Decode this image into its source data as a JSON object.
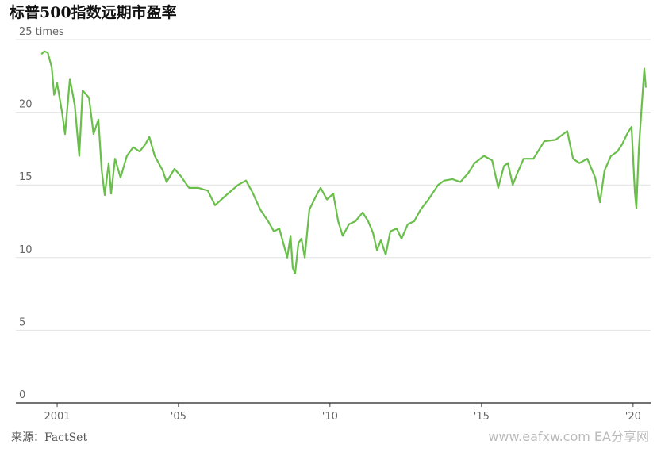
{
  "chart_data": {
    "type": "line",
    "title": "标普500指数远期市盈率",
    "source": "来源：FactSet",
    "watermark": "www.eafxw.com EA分享网",
    "x": [
      2000.48,
      2000.58,
      2000.69,
      2000.82,
      2000.9,
      2001.0,
      2001.16,
      2001.26,
      2001.42,
      2001.58,
      2001.73,
      2001.84,
      2002.05,
      2002.2,
      2002.36,
      2002.47,
      2002.57,
      2002.7,
      2002.78,
      2002.91,
      2003.09,
      2003.3,
      2003.51,
      2003.72,
      2003.91,
      2004.04,
      2004.22,
      2004.48,
      2004.61,
      2004.87,
      2005.08,
      2005.35,
      2005.66,
      2005.97,
      2006.21,
      2006.58,
      2006.97,
      2007.23,
      2007.44,
      2007.7,
      2007.96,
      2008.15,
      2008.33,
      2008.46,
      2008.59,
      2008.7,
      2008.77,
      2008.85,
      2008.96,
      2009.06,
      2009.17,
      2009.32,
      2009.53,
      2009.69,
      2009.9,
      2010.11,
      2010.27,
      2010.42,
      2010.63,
      2010.84,
      2011.08,
      2011.26,
      2011.42,
      2011.55,
      2011.68,
      2011.84,
      2011.99,
      2012.2,
      2012.36,
      2012.57,
      2012.78,
      2012.99,
      2013.25,
      2013.57,
      2013.77,
      2014.04,
      2014.3,
      2014.56,
      2014.77,
      2015.08,
      2015.35,
      2015.55,
      2015.74,
      2015.87,
      2016.03,
      2016.18,
      2016.39,
      2016.71,
      2016.92,
      2017.07,
      2017.44,
      2017.83,
      2018.02,
      2018.23,
      2018.49,
      2018.75,
      2018.91,
      2019.06,
      2019.27,
      2019.48,
      2019.64,
      2019.8,
      2019.95,
      2020.06,
      2020.11,
      2020.19,
      2020.27,
      2020.32,
      2020.37,
      2020.42
    ],
    "series": [
      {
        "name": "标普500指数远期市盈率",
        "color": "#6abf4b",
        "values": [
          24.0,
          24.2,
          24.1,
          23.1,
          21.2,
          22.0,
          20.0,
          18.5,
          22.3,
          20.5,
          17.0,
          21.5,
          21.0,
          18.5,
          19.5,
          16.0,
          14.3,
          16.5,
          14.4,
          16.8,
          15.5,
          17.0,
          17.6,
          17.3,
          17.8,
          18.3,
          17.0,
          16.0,
          15.2,
          16.1,
          15.6,
          14.8,
          14.8,
          14.6,
          13.6,
          14.3,
          15.0,
          15.3,
          14.5,
          13.3,
          12.5,
          11.8,
          12.0,
          11.0,
          10.0,
          11.5,
          9.3,
          8.9,
          11.0,
          11.3,
          10.0,
          13.3,
          14.2,
          14.8,
          14.0,
          14.4,
          12.5,
          11.5,
          12.3,
          12.5,
          13.1,
          12.5,
          11.7,
          10.5,
          11.2,
          10.2,
          11.8,
          12.0,
          11.3,
          12.3,
          12.5,
          13.3,
          14.0,
          15.0,
          15.3,
          15.4,
          15.2,
          15.8,
          16.5,
          17.0,
          16.7,
          14.8,
          16.3,
          16.5,
          15.0,
          15.8,
          16.8,
          16.8,
          17.5,
          18.0,
          18.1,
          18.7,
          16.8,
          16.5,
          16.8,
          15.5,
          13.8,
          16.0,
          17.0,
          17.3,
          17.8,
          18.5,
          19.0,
          14.5,
          13.4,
          17.5,
          20.0,
          21.5,
          23.0,
          21.7
        ]
      }
    ],
    "xlim": [
      1999.69,
      2020.58
    ],
    "xticks": [
      2001,
      {
        "value": 2005,
        "label": "'05"
      },
      {
        "value": 2010,
        "label": "'10"
      },
      {
        "value": 2015,
        "label": "'15"
      },
      {
        "value": 2020,
        "label": "'20"
      }
    ],
    "ylim": [
      0,
      25
    ],
    "yticks": [
      0,
      5,
      10,
      15,
      20,
      {
        "value": 25,
        "label": "25 times"
      }
    ],
    "grid": true
  }
}
